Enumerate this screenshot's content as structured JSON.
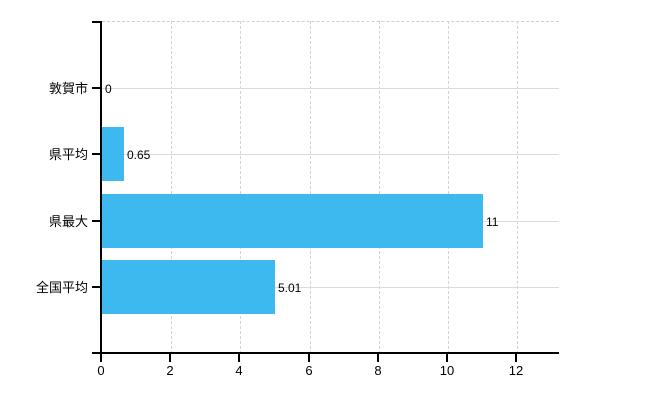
{
  "chart_data": {
    "type": "bar",
    "orientation": "horizontal",
    "title": "",
    "xlabel": "",
    "ylabel": "",
    "categories": [
      "敦賀市",
      "県平均",
      "県最大",
      "全国平均"
    ],
    "values": [
      0,
      0.65,
      11,
      5.01
    ],
    "value_labels": [
      "0",
      "0.65",
      "11",
      "5.01"
    ],
    "x_ticks": [
      0,
      2,
      4,
      6,
      8,
      10,
      12
    ],
    "x_tick_labels": [
      "0",
      "2",
      "4",
      "6",
      "8",
      "10",
      "12"
    ],
    "xlim": [
      0,
      13.2
    ],
    "legend": "none",
    "grid": {
      "vertical_style": "dashed",
      "horizontal_style": "solid",
      "top_border_style": "dashed"
    },
    "colors": {
      "bar": "#3EB9F0",
      "grid_solid": "#D9DDD4",
      "grid_dashed": "#D5D0D9",
      "axis": "#000000",
      "text": "#000000",
      "background": "#FFFFFF"
    }
  }
}
